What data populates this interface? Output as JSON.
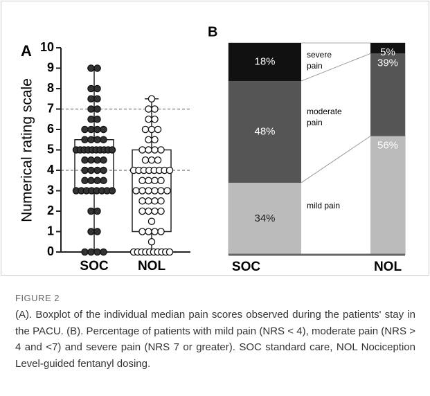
{
  "chart_data": [
    {
      "type": "box",
      "panel_label": "A",
      "ylabel": "Numerical rating scale",
      "categories": [
        "SOC",
        "NOL"
      ],
      "ylim": [
        0,
        10
      ],
      "yticks": [
        0,
        1,
        2,
        3,
        4,
        5,
        6,
        7,
        8,
        9,
        10
      ],
      "reference_lines": [
        4,
        7
      ],
      "boxes": [
        {
          "min": 0,
          "q1": 3,
          "median": 5,
          "q3": 5.5,
          "max": 9,
          "point_fill": "#333333",
          "points": [
            9,
            9,
            8,
            8,
            7.5,
            7.5,
            7,
            7,
            6.5,
            6.5,
            6,
            6,
            6,
            6,
            5.5,
            5.5,
            5.5,
            5.5,
            5,
            5,
            5,
            5,
            5,
            5,
            5,
            5,
            5,
            5,
            4.5,
            4.5,
            4.5,
            4.5,
            4,
            4,
            4,
            4,
            3.5,
            3.5,
            3.5,
            3.5,
            3,
            3,
            3,
            3,
            3,
            3,
            3,
            3,
            2,
            2,
            1,
            1,
            0,
            0,
            0,
            0
          ]
        },
        {
          "min": 0,
          "q1": 1,
          "median": 3,
          "q3": 5,
          "max": 7.5,
          "point_fill": "#ffffff",
          "points": [
            7.5,
            7,
            7,
            6.5,
            6.5,
            6,
            6,
            6,
            5.5,
            5.5,
            5,
            5,
            5,
            5,
            4.5,
            4.5,
            4.5,
            4,
            4,
            4,
            4,
            4,
            4,
            4,
            4,
            3.5,
            3.5,
            3.5,
            3.5,
            3,
            3,
            3,
            3,
            3,
            3,
            2.5,
            2.5,
            2.5,
            2.5,
            2,
            2,
            2,
            2,
            1.5,
            1,
            1,
            1,
            1,
            0.5,
            0,
            0,
            0,
            0,
            0,
            0,
            0,
            0,
            0,
            0
          ]
        }
      ]
    },
    {
      "type": "stacked_bar",
      "panel_label": "B",
      "categories": [
        "SOC",
        "NOL"
      ],
      "series": [
        {
          "name": "mild pain",
          "color": "#bbbbbb",
          "label_color": [
            "#222222",
            "#ffffff"
          ],
          "values": [
            34,
            56
          ],
          "value_labels": [
            "34%",
            "56%"
          ]
        },
        {
          "name": "moderate pain",
          "color": "#555555",
          "label_color": [
            "#ffffff",
            "#ffffff"
          ],
          "values": [
            48,
            39
          ],
          "value_labels": [
            "48%",
            "39%"
          ]
        },
        {
          "name": "severe pain",
          "color": "#111111",
          "label_color": [
            "#ffffff",
            "#ffffff"
          ],
          "values": [
            18,
            5
          ],
          "value_labels": [
            "18%",
            "5%"
          ]
        }
      ]
    }
  ],
  "caption": {
    "label": "FIGURE 2",
    "text": "(A). Boxplot of the individual median pain scores observed during the patients' stay in the PACU. (B). Percentage of patients with mild pain (NRS < 4), moderate pain (NRS > 4 and <7) and severe pain (NRS 7 or greater). SOC standard care, NOL Nociception Level-guided fentanyl dosing."
  }
}
